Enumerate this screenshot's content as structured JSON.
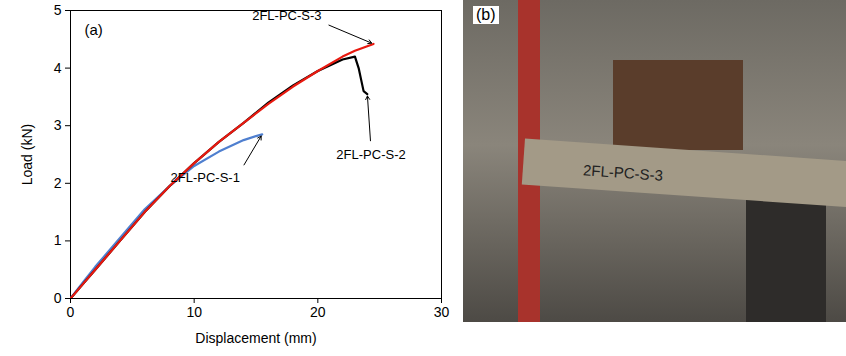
{
  "chart_data": {
    "type": "line",
    "annotation": "(a)",
    "x_label": "Displacement (mm)",
    "y_label": "Load (kN)",
    "xlim": [
      0,
      30
    ],
    "xticks": [
      0,
      10,
      20,
      30
    ],
    "ylim": [
      0,
      5
    ],
    "yticks": [
      0,
      1,
      2,
      3,
      4,
      5
    ],
    "series": [
      {
        "name": "2FL-PC-S-1",
        "color": "#4f7fcf",
        "x": [
          0,
          1,
          2,
          4,
          6,
          8,
          10,
          12,
          14,
          15,
          15.5
        ],
        "values": [
          0,
          0.28,
          0.55,
          1.05,
          1.55,
          1.95,
          2.3,
          2.55,
          2.75,
          2.82,
          2.85
        ]
      },
      {
        "name": "2FL-PC-S-2",
        "color": "#000000",
        "x": [
          0,
          1,
          2,
          4,
          6,
          8,
          10,
          12,
          14,
          16,
          18,
          20,
          22,
          23,
          23.3,
          23.5,
          23.7,
          24
        ],
        "values": [
          0,
          0.25,
          0.5,
          1.0,
          1.5,
          1.95,
          2.35,
          2.72,
          3.05,
          3.4,
          3.7,
          3.95,
          4.15,
          4.2,
          4.0,
          3.8,
          3.6,
          3.55
        ]
      },
      {
        "name": "2FL-PC-S-3",
        "color": "#e8190f",
        "x": [
          0,
          1,
          2,
          4,
          6,
          8,
          10,
          12,
          14,
          16,
          18,
          20,
          22,
          23,
          24,
          24.5
        ],
        "values": [
          0,
          0.25,
          0.5,
          1.0,
          1.5,
          1.95,
          2.35,
          2.72,
          3.05,
          3.38,
          3.68,
          3.95,
          4.2,
          4.3,
          4.38,
          4.42
        ]
      }
    ],
    "panel_b": {
      "label": "(b)",
      "specimen_text": "2FL-PC-S-3"
    }
  }
}
